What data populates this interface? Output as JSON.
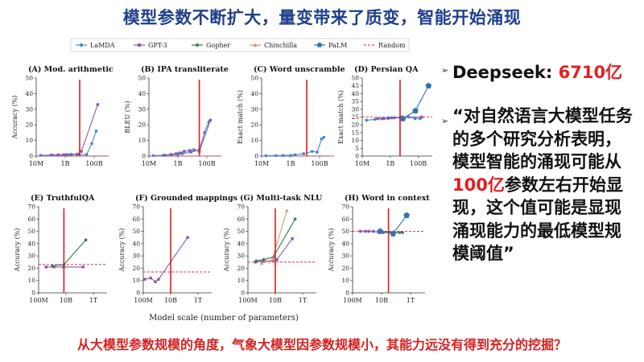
{
  "slide": {
    "title": "模型参数不断扩大，量变带来了质变，智能开始涌现",
    "bullet1": {
      "label": "Deepseek: ",
      "value": "6710亿"
    },
    "bullet2": {
      "part1": "“对自然语言大模型任务的多个研究分析表明，模型智能的涌现可能从",
      "highlight": "100亿",
      "part2": "参数左右开始显现，这个值可能是显现涌现能力的最低模型规模阈值”"
    },
    "footer": "从大模型参数规模的角度，气象大模型因参数规模小，其能力远没有得到充分的挖掘？",
    "x_axis_title": "Model scale (number of parameters)"
  },
  "legend": [
    {
      "name": "LaMDA",
      "color": "#4a86c8",
      "marker": "circle"
    },
    {
      "name": "GPT-3",
      "color": "#8a5aa8",
      "marker": "square"
    },
    {
      "name": "Gopher",
      "color": "#2e7d4f",
      "marker": "diamond"
    },
    {
      "name": "Chinchilla",
      "color": "#c99a82",
      "marker": "triangle"
    },
    {
      "name": "PaLM",
      "color": "#3472b0",
      "marker": "pentagon"
    },
    {
      "name": "Random",
      "color": "#d94a6a",
      "marker": "dash"
    }
  ],
  "chart_data": [
    {
      "type": "line",
      "title": "(A) Mod. arithmetic",
      "ylabel": "Accuracy (%)",
      "xscale": "log",
      "xlim": [
        10000000,
        1000000000000
      ],
      "ylim": [
        0,
        50
      ],
      "yticks": [
        0,
        10,
        20,
        30,
        40,
        50
      ],
      "xticks": [
        {
          "value": 10000000,
          "label": "10M"
        },
        {
          "value": 1000000000,
          "label": "1B"
        },
        {
          "value": 100000000000,
          "label": "100B"
        }
      ],
      "threshold_x": 10000000000,
      "random": 0,
      "series": [
        {
          "name": "LaMDA",
          "points": [
            [
              20000000,
              0.5
            ],
            [
              100000000,
              0.6
            ],
            [
              300000000,
              0.6
            ],
            [
              1000000000,
              0.7
            ],
            [
              2000000000,
              0.8
            ],
            [
              8000000000,
              0.9
            ],
            [
              30000000000,
              1.0
            ],
            [
              68000000000,
              8
            ],
            [
              137000000000,
              16
            ]
          ]
        },
        {
          "name": "GPT-3",
          "points": [
            [
              125000000,
              0.6
            ],
            [
              350000000,
              0.7
            ],
            [
              760000000,
              0.8
            ],
            [
              1300000000,
              0.9
            ],
            [
              2700000000,
              1.0
            ],
            [
              6700000000,
              1.2
            ],
            [
              13000000000,
              3
            ],
            [
              175000000000,
              33
            ]
          ]
        }
      ]
    },
    {
      "type": "line",
      "title": "(B) IPA transliterate",
      "ylabel": "BLEU (%)",
      "xscale": "log",
      "xlim": [
        10000000,
        1000000000000
      ],
      "ylim": [
        0,
        50
      ],
      "yticks": [
        0,
        10,
        20,
        30,
        40,
        50
      ],
      "xticks": [
        {
          "value": 10000000,
          "label": "10M"
        },
        {
          "value": 1000000000,
          "label": "1B"
        },
        {
          "value": 100000000000,
          "label": "100B"
        }
      ],
      "threshold_x": 30000000000,
      "random": 0,
      "series": [
        {
          "name": "LaMDA",
          "points": [
            [
              20000000,
              0.3
            ],
            [
              100000000,
              0.5
            ],
            [
              300000000,
              0.7
            ],
            [
              1000000000,
              1
            ],
            [
              2000000000,
              1.5
            ],
            [
              8000000000,
              2.5
            ],
            [
              30000000000,
              4
            ],
            [
              68000000000,
              15
            ],
            [
              137000000000,
              22
            ]
          ]
        },
        {
          "name": "GPT-3",
          "points": [
            [
              125000000,
              0.5
            ],
            [
              350000000,
              1
            ],
            [
              760000000,
              1.5
            ],
            [
              1300000000,
              2
            ],
            [
              2700000000,
              3
            ],
            [
              6700000000,
              3.5
            ],
            [
              13000000000,
              4
            ],
            [
              30000000000,
              3
            ],
            [
              175000000000,
              23
            ]
          ]
        }
      ]
    },
    {
      "type": "line",
      "title": "(C) Word unscramble",
      "ylabel": "Exact match (%)",
      "xscale": "log",
      "xlim": [
        10000000,
        1000000000000
      ],
      "ylim": [
        0,
        50
      ],
      "yticks": [
        0,
        10,
        20,
        30,
        40,
        50
      ],
      "xticks": [
        {
          "value": 10000000,
          "label": "10M"
        },
        {
          "value": 1000000000,
          "label": "1B"
        },
        {
          "value": 100000000000,
          "label": "100B"
        }
      ],
      "threshold_x": 13000000000,
      "random": 0,
      "series": [
        {
          "name": "LaMDA",
          "points": [
            [
              20000000,
              0.2
            ],
            [
              100000000,
              0.3
            ],
            [
              300000000,
              0.4
            ],
            [
              1000000000,
              0.5
            ],
            [
              2000000000,
              0.8
            ],
            [
              8000000000,
              1.5
            ],
            [
              30000000000,
              3
            ],
            [
              68000000000,
              2.5
            ],
            [
              137000000000,
              11
            ],
            [
              200000000000,
              12
            ]
          ]
        }
      ]
    },
    {
      "type": "line",
      "title": "(D) Persian QA",
      "ylabel": "Exact match (%)",
      "xscale": "log",
      "xlim": [
        10000000,
        1000000000000
      ],
      "ylim": [
        0,
        50
      ],
      "yticks": [
        0,
        5,
        10,
        15,
        20,
        25,
        30,
        35,
        40,
        45,
        50
      ],
      "xticks": [
        {
          "value": 10000000,
          "label": "10M"
        },
        {
          "value": 1000000000,
          "label": "1B"
        },
        {
          "value": 100000000000,
          "label": "100B"
        }
      ],
      "threshold_x": 5000000000,
      "random": 25,
      "series": [
        {
          "name": "LaMDA",
          "points": [
            [
              20000000,
              23
            ],
            [
              80000000,
              23.5
            ],
            [
              250000000,
              24
            ],
            [
              700000000,
              24
            ],
            [
              2000000000,
              24.5
            ],
            [
              5000000000,
              24.5
            ],
            [
              20000000000,
              25
            ],
            [
              60000000000,
              24
            ],
            [
              137000000000,
              24
            ]
          ]
        },
        {
          "name": "GPT-3",
          "points": [
            [
              125000000,
              24
            ],
            [
              350000000,
              24
            ],
            [
              760000000,
              24.5
            ],
            [
              1300000000,
              24.5
            ],
            [
              6700000000,
              25
            ],
            [
              175000000000,
              25
            ]
          ]
        },
        {
          "name": "PaLM",
          "points": [
            [
              8000000000,
              24
            ],
            [
              62000000000,
              29
            ],
            [
              540000000000,
              45
            ]
          ]
        }
      ]
    },
    {
      "type": "line",
      "title": "(E) TruthfulQA",
      "ylabel": "Accuracy (%)",
      "xscale": "log",
      "xlim": [
        100000000,
        10000000000000
      ],
      "ylim": [
        0,
        70
      ],
      "yticks": [
        0,
        10,
        20,
        30,
        40,
        50,
        60,
        70
      ],
      "xticks": [
        {
          "value": 100000000,
          "label": "100M"
        },
        {
          "value": 10000000000,
          "label": "10B"
        },
        {
          "value": 1000000000000,
          "label": "1T"
        }
      ],
      "threshold_x": 7000000000,
      "random": 23,
      "series": [
        {
          "name": "GPT-3",
          "points": [
            [
              350000000,
              21
            ],
            [
              1300000000,
              21
            ],
            [
              6700000000,
              21
            ],
            [
              175000000000,
              21
            ]
          ]
        },
        {
          "name": "Gopher",
          "points": [
            [
              1000000000,
              22
            ],
            [
              7100000000,
              23
            ],
            [
              280000000000,
              43
            ]
          ]
        }
      ]
    },
    {
      "type": "line",
      "title": "(F) Grounded mappings",
      "ylabel": "Accuracy (%)",
      "xscale": "log",
      "xlim": [
        100000000,
        10000000000000
      ],
      "ylim": [
        0,
        70
      ],
      "yticks": [
        0,
        10,
        20,
        30,
        40,
        50,
        60,
        70
      ],
      "xticks": [
        {
          "value": 100000000,
          "label": "100M"
        },
        {
          "value": 10000000000,
          "label": "10B"
        },
        {
          "value": 1000000000000,
          "label": "1T"
        }
      ],
      "threshold_x": 10000000000,
      "random": 17,
      "series": [
        {
          "name": "GPT-3",
          "points": [
            [
              125000000,
              11
            ],
            [
              350000000,
              12
            ],
            [
              760000000,
              9
            ],
            [
              1300000000,
              11
            ],
            [
              175000000000,
              45
            ]
          ]
        }
      ]
    },
    {
      "type": "line",
      "title": "(G) Multi-task NLU",
      "ylabel": "Accuracy (%)",
      "xscale": "log",
      "xlim": [
        100000000,
        10000000000000
      ],
      "ylim": [
        0,
        70
      ],
      "yticks": [
        0,
        10,
        20,
        30,
        40,
        50,
        60,
        70
      ],
      "xticks": [
        {
          "value": 100000000,
          "label": "100M"
        },
        {
          "value": 10000000000,
          "label": "10B"
        },
        {
          "value": 1000000000000,
          "label": "1T"
        }
      ],
      "threshold_x": 10000000000,
      "random": 25,
      "series": [
        {
          "name": "GPT-3",
          "points": [
            [
              350000000,
              25
            ],
            [
              1300000000,
              26
            ],
            [
              6700000000,
              26
            ],
            [
              13000000000,
              27
            ],
            [
              175000000000,
              44
            ]
          ]
        },
        {
          "name": "Gopher",
          "points": [
            [
              400000000,
              26
            ],
            [
              1400000000,
              27
            ],
            [
              7100000000,
              29
            ],
            [
              280000000000,
              60
            ]
          ]
        },
        {
          "name": "Chinchilla",
          "points": [
            [
              1000000000,
              24
            ],
            [
              6000000000,
              27
            ],
            [
              70000000000,
              67
            ]
          ]
        }
      ]
    },
    {
      "type": "line",
      "title": "(H) Word in context",
      "ylabel": "Accuracy (%)",
      "xscale": "log",
      "xlim": [
        100000000,
        10000000000000
      ],
      "ylim": [
        0,
        70
      ],
      "yticks": [
        0,
        10,
        20,
        30,
        40,
        50,
        60,
        70
      ],
      "xticks": [
        {
          "value": 100000000,
          "label": "100M"
        },
        {
          "value": 10000000000,
          "label": "10B"
        },
        {
          "value": 1000000000000,
          "label": "1T"
        }
      ],
      "threshold_x": 30000000000,
      "random": 50,
      "series": [
        {
          "name": "GPT-3",
          "points": [
            [
              350000000,
              50
            ],
            [
              760000000,
              50
            ],
            [
              1300000000,
              50
            ],
            [
              2700000000,
              50
            ],
            [
              6700000000,
              49
            ],
            [
              13000000000,
              49
            ],
            [
              175000000000,
              49
            ]
          ]
        },
        {
          "name": "Gopher",
          "points": [
            [
              7100000000,
              50
            ],
            [
              280000000000,
              49
            ]
          ]
        },
        {
          "name": "Chinchilla",
          "points": [
            [
              70000000000,
              50
            ]
          ]
        },
        {
          "name": "PaLM",
          "points": [
            [
              8000000000,
              50
            ],
            [
              62000000000,
              48
            ],
            [
              540000000000,
              63
            ]
          ]
        }
      ]
    }
  ]
}
